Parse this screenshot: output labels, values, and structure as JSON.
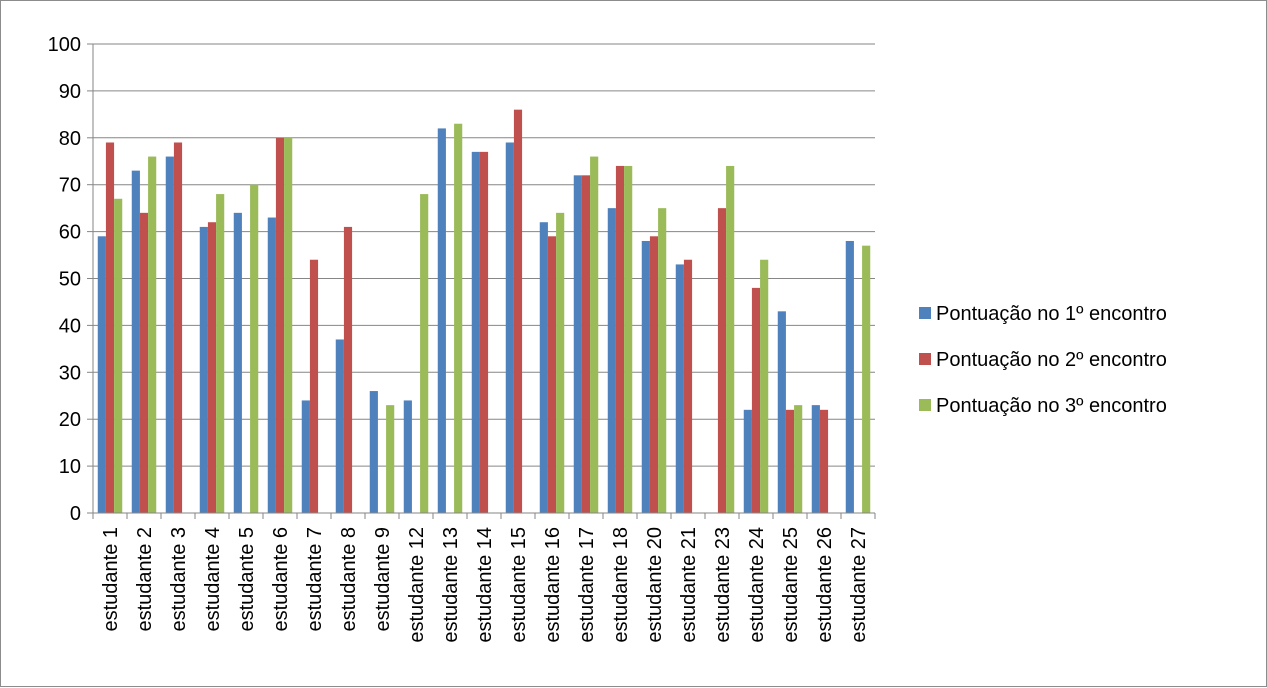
{
  "chart_data": {
    "type": "bar",
    "title": "",
    "xlabel": "",
    "ylabel": "",
    "ylim": [
      0,
      100
    ],
    "yticks": [
      0,
      10,
      20,
      30,
      40,
      50,
      60,
      70,
      80,
      90,
      100
    ],
    "grid": true,
    "legend_position": "right",
    "categories": [
      "estudante 1",
      "estudante 2",
      "estudante 3",
      "estudante 4",
      "estudante 5",
      "estudante 6",
      "estudante 7",
      "estudante 8",
      "estudante 9",
      "estudante 12",
      "estudante 13",
      "estudante 14",
      "estudante 15",
      "estudante 16",
      "estudante 17",
      "estudante 18",
      "estudante 20",
      "estudante 21",
      "estudante 23",
      "estudante 24",
      "estudante 25",
      "estudante 26",
      "estudante 27"
    ],
    "series": [
      {
        "name": "Pontuação no 1º encontro",
        "color": "#4f81bd",
        "values": [
          59,
          73,
          76,
          61,
          64,
          63,
          24,
          37,
          26,
          24,
          82,
          77,
          79,
          62,
          72,
          65,
          58,
          53,
          null,
          22,
          43,
          23,
          58
        ]
      },
      {
        "name": "Pontuação no 2º encontro",
        "color": "#c0504d",
        "values": [
          79,
          64,
          79,
          62,
          null,
          80,
          54,
          61,
          null,
          null,
          null,
          77,
          86,
          59,
          72,
          74,
          59,
          54,
          65,
          48,
          22,
          22,
          null
        ]
      },
      {
        "name": "Pontuação no 3º encontro",
        "color": "#9bbb59",
        "values": [
          67,
          76,
          null,
          68,
          70,
          80,
          null,
          null,
          23,
          68,
          83,
          null,
          null,
          64,
          76,
          74,
          65,
          null,
          74,
          54,
          23,
          null,
          57
        ]
      }
    ]
  }
}
